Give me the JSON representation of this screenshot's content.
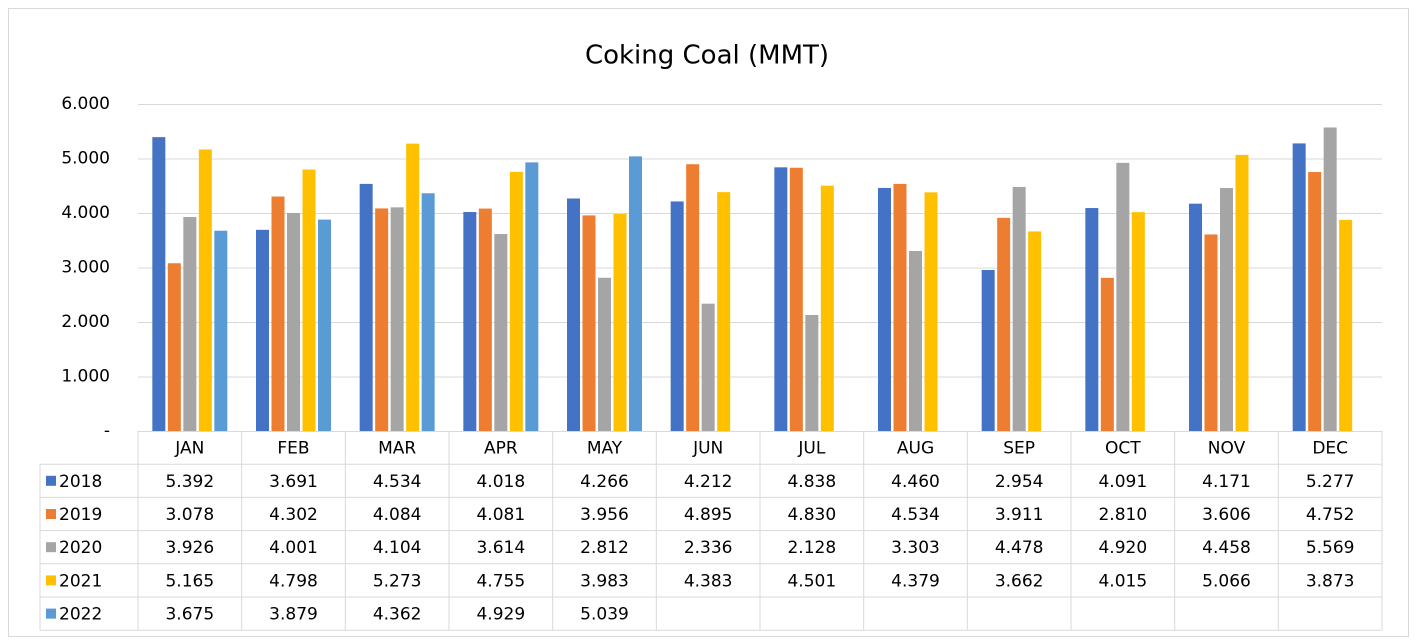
{
  "chart_data": {
    "type": "bar",
    "title": "Coking Coal (MMT)",
    "categories": [
      "JAN",
      "FEB",
      "MAR",
      "APR",
      "MAY",
      "JUN",
      "JUL",
      "AUG",
      "SEP",
      "OCT",
      "NOV",
      "DEC"
    ],
    "series": [
      {
        "name": "2018",
        "color": "#4472c4",
        "values": [
          5.392,
          3.691,
          4.534,
          4.018,
          4.266,
          4.212,
          4.838,
          4.46,
          2.954,
          4.091,
          4.171,
          5.277
        ],
        "value_labels": [
          "5.392",
          "3.691",
          "4.534",
          "4.018",
          "4.266",
          "4.212",
          "4.838",
          "4.460",
          "2.954",
          "4.091",
          "4.171",
          "5.277"
        ]
      },
      {
        "name": "2019",
        "color": "#ed7d31",
        "values": [
          3.078,
          4.302,
          4.084,
          4.081,
          3.956,
          4.895,
          4.83,
          4.534,
          3.911,
          2.81,
          3.606,
          4.752
        ],
        "value_labels": [
          "3.078",
          "4.302",
          "4.084",
          "4.081",
          "3.956",
          "4.895",
          "4.830",
          "4.534",
          "3.911",
          "2.810",
          "3.606",
          "4.752"
        ]
      },
      {
        "name": "2020",
        "color": "#a5a5a5",
        "values": [
          3.926,
          4.001,
          4.104,
          3.614,
          2.812,
          2.336,
          2.128,
          3.303,
          4.478,
          4.92,
          4.458,
          5.569
        ],
        "value_labels": [
          "3.926",
          "4.001",
          "4.104",
          "3.614",
          "2.812",
          "2.336",
          "2.128",
          "3.303",
          "4.478",
          "4.920",
          "4.458",
          "5.569"
        ]
      },
      {
        "name": "2021",
        "color": "#ffc000",
        "values": [
          5.165,
          4.798,
          5.273,
          4.755,
          3.983,
          4.383,
          4.501,
          4.379,
          3.662,
          4.015,
          5.066,
          3.873
        ],
        "value_labels": [
          "5.165",
          "4.798",
          "5.273",
          "4.755",
          "3.983",
          "4.383",
          "4.501",
          "4.379",
          "3.662",
          "4.015",
          "5.066",
          "3.873"
        ]
      },
      {
        "name": "2022",
        "color": "#5b9bd5",
        "values": [
          3.675,
          3.879,
          4.362,
          4.929,
          5.039,
          null,
          null,
          null,
          null,
          null,
          null,
          null
        ],
        "value_labels": [
          "3.675",
          "3.879",
          "4.362",
          "4.929",
          "5.039",
          null,
          null,
          null,
          null,
          null,
          null,
          null
        ]
      }
    ],
    "ylim": [
      0,
      6
    ],
    "yticks": [
      {
        "value": 0,
        "label": "-"
      },
      {
        "value": 1,
        "label": "1.000"
      },
      {
        "value": 2,
        "label": "2.000"
      },
      {
        "value": 3,
        "label": "3.000"
      },
      {
        "value": 4,
        "label": "4.000"
      },
      {
        "value": 5,
        "label": "5.000"
      },
      {
        "value": 6,
        "label": "6.000"
      }
    ],
    "grid": true,
    "data_table": true
  }
}
